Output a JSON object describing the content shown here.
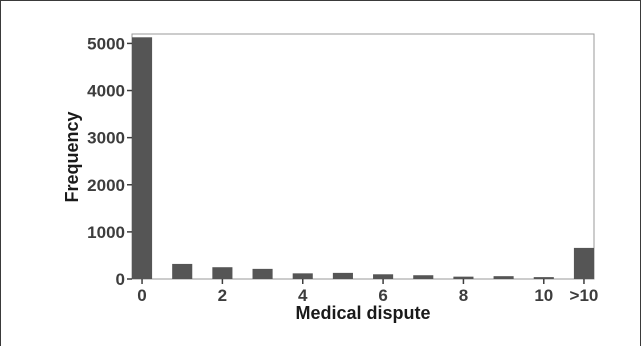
{
  "chart_data": {
    "type": "bar",
    "categories": [
      "0",
      "1",
      "2",
      "3",
      "4",
      "5",
      "6",
      "7",
      "8",
      "9",
      "10",
      ">10"
    ],
    "values": [
      5130,
      320,
      250,
      215,
      120,
      130,
      100,
      80,
      50,
      60,
      40,
      660
    ],
    "xlabel": "Medical dispute",
    "ylabel": "Frequency",
    "ylim": [
      0,
      5200
    ],
    "yticks": [
      0,
      1000,
      2000,
      3000,
      4000,
      5000
    ],
    "xtick_labels": [
      "0",
      "2",
      "4",
      "6",
      "8",
      "10",
      ">10"
    ],
    "xtick_indices": [
      0,
      2,
      4,
      6,
      8,
      10,
      11
    ],
    "grid": false,
    "bar_color": "#555555"
  }
}
